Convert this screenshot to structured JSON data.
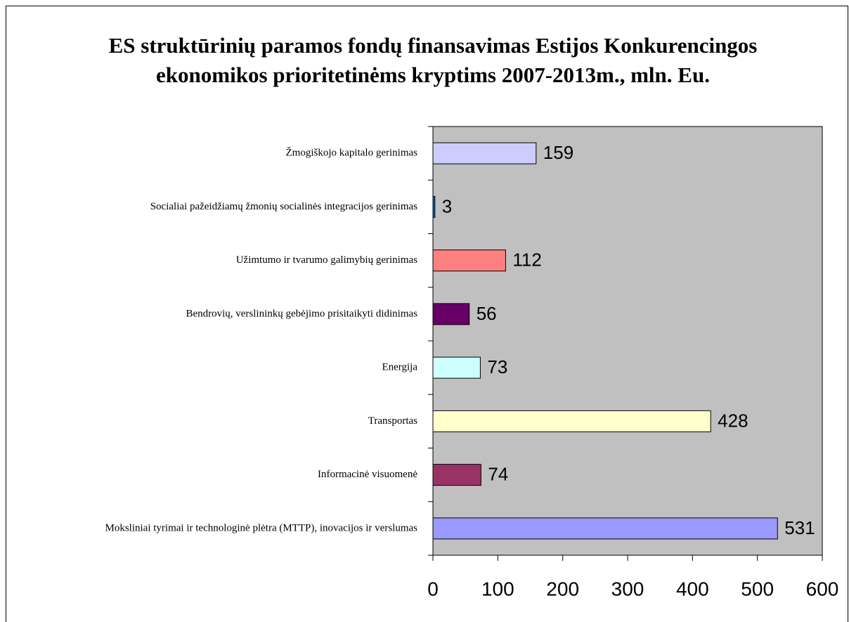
{
  "chart_data": {
    "type": "bar",
    "orientation": "horizontal",
    "title": [
      "ES struktūrinių paramos fondų finansavimas Estijos Konkurencingos",
      "ekonomikos prioritetinėms kryptims 2007-2013m., mln. Eu."
    ],
    "categories": [
      "Žmogiškojo kapitalo gerinimas",
      "Socialiai pažeidžiamų žmonių socialinės integracijos gerinimas",
      "Užimtumo ir tvarumo galimybių gerinimas",
      "Bendrovių, verslininkų gebėjimo prisitaikyti didinimas",
      "Energija",
      "Transportas",
      "Informacinė visuomenė",
      "Moksliniai tyrimai ir technologinė plėtra (MTTP), inovacijos ir verslumas"
    ],
    "values": [
      159,
      3,
      112,
      56,
      73,
      428,
      74,
      531
    ],
    "colors": [
      "#ccccff",
      "#0066cc",
      "#ff8080",
      "#660066",
      "#ccffff",
      "#ffffcc",
      "#993366",
      "#9999ff"
    ],
    "xlim": [
      0,
      600
    ],
    "xticks": [
      0,
      100,
      200,
      300,
      400,
      500,
      600
    ],
    "plot_background": "#c0c0c0"
  }
}
